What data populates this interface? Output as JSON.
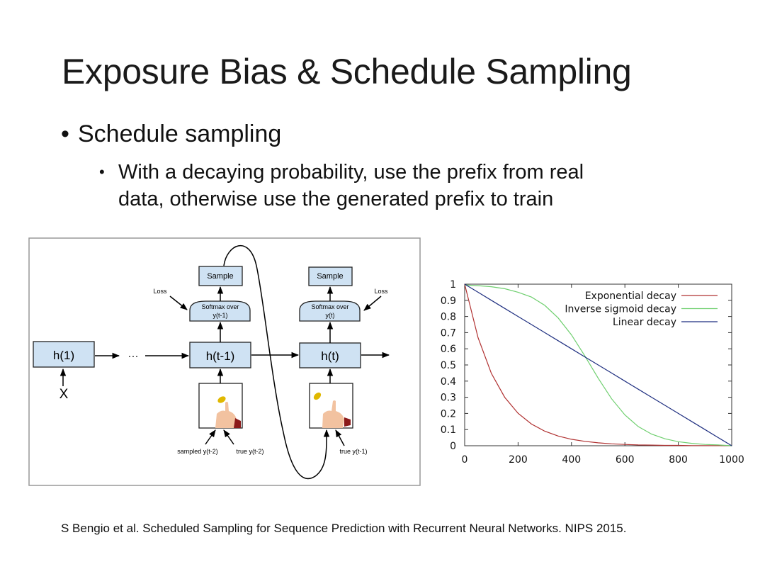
{
  "slide": {
    "title": "Exposure Bias & Schedule Sampling",
    "bullet": "Schedule sampling",
    "sub_bullet_lines": [
      "With a decaying probability, use the prefix from real",
      "data, otherwise use the generated prefix to train"
    ],
    "footer": "S Bengio et al. Scheduled Sampling for Sequence Prediction with Recurrent Neural Networks. NIPS 2015."
  },
  "diagram": {
    "h1": "h(1)",
    "ellipsis": "···",
    "x": "X",
    "ht1": "h(t-1)",
    "ht": "h(t)",
    "sample": "Sample",
    "softmax1": [
      "Softmax over",
      "y(t-1)"
    ],
    "softmax2": [
      "Softmax over",
      "y(t)"
    ],
    "loss": "Loss",
    "sampled_prev": "sampled y(t-2)",
    "true_prev2": "true y(t-2)",
    "true_prev1": "true y(t-1)",
    "box_color": "#cfe2f3",
    "coin_icon": "coin-flip-icon"
  },
  "chart_data": {
    "type": "line",
    "title": "",
    "xlabel": "",
    "ylabel": "",
    "xlim": [
      0,
      1000
    ],
    "ylim": [
      0,
      1
    ],
    "xticks": [
      "0",
      "200",
      "400",
      "600",
      "800",
      "1000"
    ],
    "yticks": [
      "0",
      "0.1",
      "0.2",
      "0.3",
      "0.4",
      "0.5",
      "0.6",
      "0.7",
      "0.8",
      "0.9",
      "1"
    ],
    "legend_position": "top-right",
    "grid": false,
    "x": [
      0,
      50,
      100,
      150,
      200,
      250,
      300,
      350,
      400,
      450,
      500,
      550,
      600,
      650,
      700,
      750,
      800,
      850,
      900,
      950,
      1000
    ],
    "series": [
      {
        "name": "Exponential decay",
        "color": "#b03030",
        "values": [
          1,
          0.669,
          0.448,
          0.3,
          0.201,
          0.134,
          0.09,
          0.06,
          0.04,
          0.027,
          0.018,
          0.012,
          0.008,
          0.005,
          0.004,
          0.002,
          0.002,
          0.001,
          0.001,
          0.0005,
          0
        ]
      },
      {
        "name": "Inverse sigmoid decay",
        "color": "#6fcf6f",
        "values": [
          0.995,
          0.991,
          0.984,
          0.972,
          0.95,
          0.92,
          0.869,
          0.791,
          0.686,
          0.556,
          0.418,
          0.291,
          0.191,
          0.119,
          0.072,
          0.043,
          0.025,
          0.015,
          0.008,
          0.005,
          0
        ]
      },
      {
        "name": "Linear decay",
        "color": "#1f2f80",
        "values": [
          1,
          0.95,
          0.9,
          0.85,
          0.8,
          0.75,
          0.7,
          0.65,
          0.6,
          0.55,
          0.5,
          0.45,
          0.4,
          0.35,
          0.3,
          0.25,
          0.2,
          0.15,
          0.1,
          0.05,
          0
        ]
      }
    ]
  }
}
